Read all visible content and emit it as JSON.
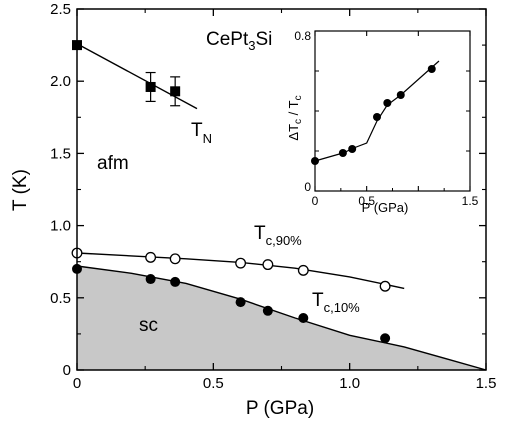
{
  "chart_data": [
    {
      "type": "scatter",
      "title": "",
      "xlabel": "P (GPa)",
      "ylabel": "T (K)",
      "xlim": [
        0,
        1.5
      ],
      "ylim": [
        0,
        2.5
      ],
      "x_ticks": [
        "0",
        "0.5",
        "1.0",
        "1.5"
      ],
      "y_ticks": [
        "0",
        "0.5",
        "1.0",
        "1.5",
        "2.0",
        "2.5"
      ],
      "grid": false,
      "legend": "none",
      "annotations": {
        "compound": "CePt",
        "compound_sub": "3",
        "compound_end": "Si",
        "phase_afm": "afm",
        "phase_sc": "sc",
        "tn": "T",
        "tn_sub": "N",
        "tc90": "T",
        "tc90_sub": "c,90%",
        "tc10": "T",
        "tc10_sub": "c,10%"
      },
      "series": [
        {
          "marker": "filled-square",
          "x": [
            0.0,
            0.27,
            0.36
          ],
          "y": [
            2.25,
            1.96,
            1.93
          ],
          "yerr": [
            0.0,
            0.1,
            0.1
          ],
          "fit": {
            "x": [
              0.0,
              0.44
            ],
            "y": [
              2.26,
              1.81
            ]
          }
        },
        {
          "marker": "open-circle",
          "x": [
            0.0,
            0.27,
            0.36,
            0.6,
            0.7,
            0.83,
            1.13
          ],
          "y": [
            0.81,
            0.78,
            0.77,
            0.74,
            0.73,
            0.69,
            0.58
          ],
          "fit": {
            "x": [
              0.0,
              0.2,
              0.4,
              0.6,
              0.8,
              1.0,
              1.2
            ],
            "y": [
              0.81,
              0.79,
              0.77,
              0.745,
              0.705,
              0.645,
              0.565
            ]
          }
        },
        {
          "marker": "filled-circle",
          "x": [
            0.0,
            0.27,
            0.36,
            0.6,
            0.7,
            0.83,
            1.13
          ],
          "y": [
            0.7,
            0.63,
            0.61,
            0.47,
            0.41,
            0.36,
            0.22
          ],
          "fit": {
            "x": [
              0.0,
              0.2,
              0.4,
              0.6,
              0.8,
              1.0,
              1.2,
              1.35,
              1.5
            ],
            "y": [
              0.72,
              0.67,
              0.6,
              0.49,
              0.36,
              0.24,
              0.16,
              0.08,
              0.0
            ]
          },
          "fill_below": true,
          "fill_color": "#c8c8c8"
        }
      ]
    },
    {
      "type": "scatter",
      "title": "",
      "xlabel": "P (GPa)",
      "ylabel": "ΔT",
      "ylabel_sub": "c",
      "ylabel_mid": " / T",
      "ylabel_sub2": "c",
      "xlim": [
        0,
        1.5
      ],
      "ylim": [
        0,
        0.8
      ],
      "x_ticks": [
        "0",
        "0.5",
        "1.5"
      ],
      "y_ticks": [
        "0",
        "0.8"
      ],
      "grid": false,
      "legend": "none",
      "series": [
        {
          "marker": "filled-circle",
          "x": [
            0.0,
            0.27,
            0.36,
            0.6,
            0.7,
            0.83,
            1.13
          ],
          "y": [
            0.15,
            0.19,
            0.21,
            0.37,
            0.44,
            0.48,
            0.61
          ],
          "fit": {
            "x": [
              0.0,
              0.27,
              0.4,
              0.5,
              0.6,
              0.7,
              0.83,
              1.2
            ],
            "y": [
              0.15,
              0.19,
              0.22,
              0.24,
              0.35,
              0.43,
              0.48,
              0.65
            ]
          }
        }
      ]
    }
  ]
}
